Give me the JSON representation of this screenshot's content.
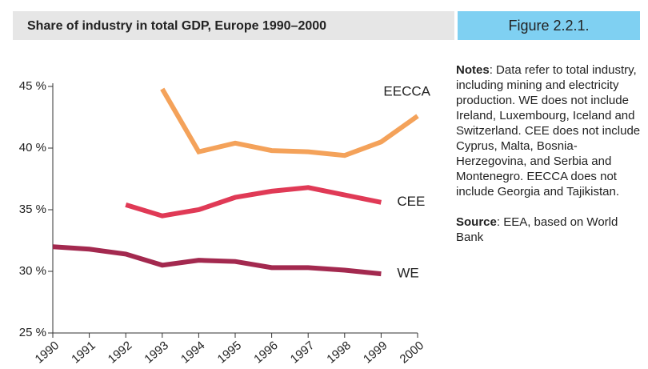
{
  "chart_data": {
    "type": "line",
    "title": "Share of industry in total GDP, Europe 1990–2000",
    "figure_label": "Figure 2.2.1.",
    "x": [
      1990,
      1991,
      1992,
      1993,
      1994,
      1995,
      1996,
      1997,
      1998,
      1999,
      2000
    ],
    "xlim": [
      1990,
      2000
    ],
    "xticks": [
      1990,
      1991,
      1992,
      1993,
      1994,
      1995,
      1996,
      1997,
      1998,
      1999,
      2000
    ],
    "ylim": [
      25,
      45
    ],
    "yticks": [
      {
        "value": 25,
        "label": "25 %"
      },
      {
        "value": 30,
        "label": "30 %"
      },
      {
        "value": 35,
        "label": "35 %"
      },
      {
        "value": 40,
        "label": "40 %"
      },
      {
        "value": 45,
        "label": "45 %"
      }
    ],
    "grid": false,
    "series": [
      {
        "name": "EECCA",
        "color": "#f4a25a",
        "values": [
          null,
          null,
          null,
          44.8,
          39.7,
          40.4,
          39.8,
          39.7,
          39.4,
          40.5,
          42.6
        ]
      },
      {
        "name": "CEE",
        "color": "#e03a56",
        "values": [
          null,
          null,
          35.4,
          34.5,
          35.0,
          36.0,
          36.5,
          36.8,
          36.2,
          35.6,
          null
        ]
      },
      {
        "name": "WE",
        "color": "#a3294f",
        "values": [
          32.0,
          31.8,
          31.4,
          30.5,
          30.9,
          30.8,
          30.3,
          30.3,
          30.1,
          29.8,
          null
        ]
      }
    ],
    "notes": {
      "label": "Notes",
      "text": ": Data refer to total industry, including mining and electricity production. WE does not include Ireland, Luxembourg, Iceland and Switzerland. CEE does not include Cyprus, Malta, Bosnia-Herzegovina, and Serbia and Montenegro. EECCA does not include Georgia and Tajikistan."
    },
    "source": {
      "label": "Source",
      "text": ": EEA, based on World Bank"
    }
  }
}
